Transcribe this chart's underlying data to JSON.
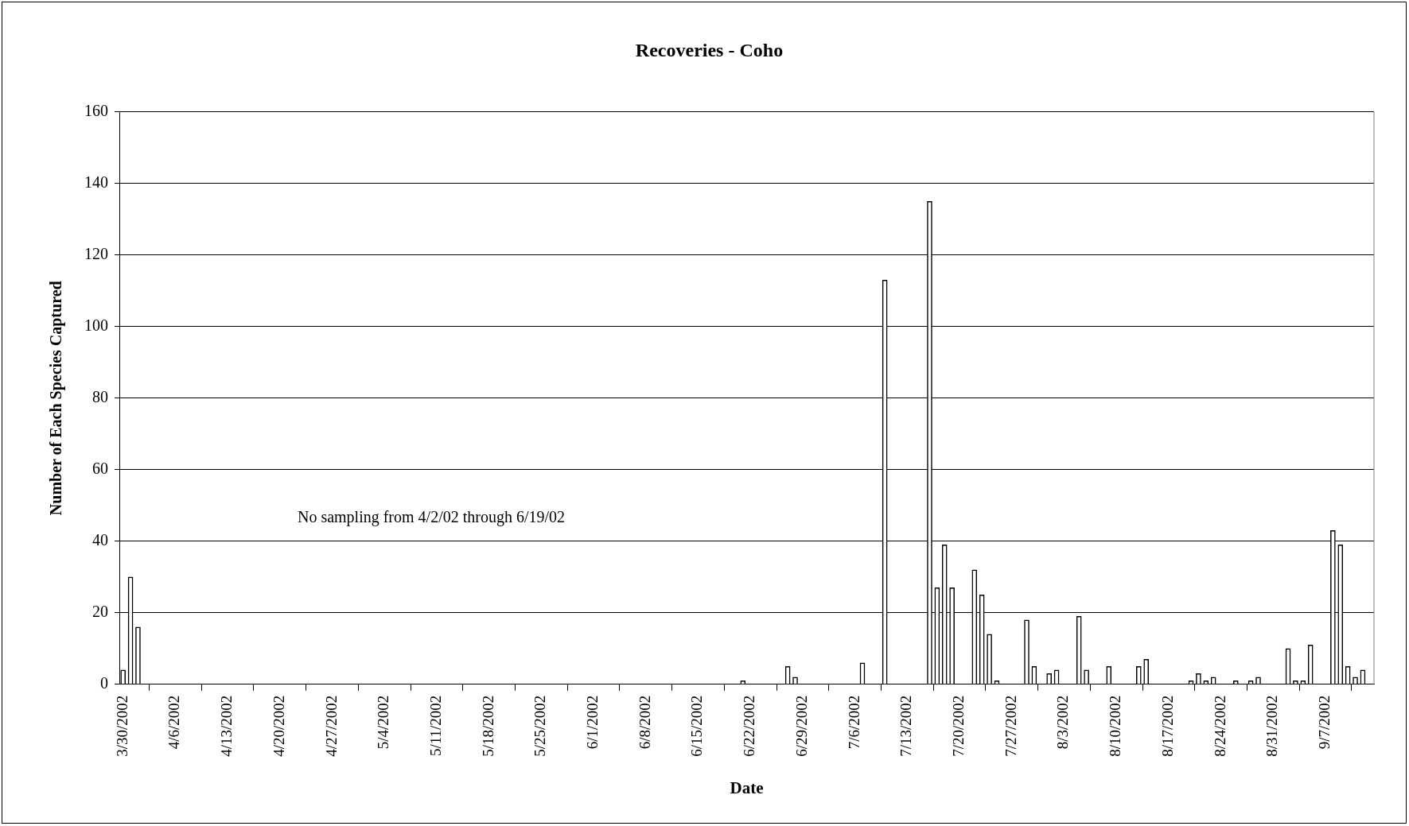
{
  "chart_data": {
    "type": "bar",
    "title": "Recoveries - Coho",
    "xlabel": "Date",
    "ylabel": "Number of Each Species Captured",
    "x": [
      "2002-03-30",
      "2002-03-31",
      "2002-04-01",
      "2002-06-21",
      "2002-06-27",
      "2002-06-28",
      "2002-07-07",
      "2002-07-10",
      "2002-07-16",
      "2002-07-17",
      "2002-07-18",
      "2002-07-19",
      "2002-07-22",
      "2002-07-23",
      "2002-07-24",
      "2002-07-25",
      "2002-07-29",
      "2002-07-30",
      "2002-08-01",
      "2002-08-02",
      "2002-08-05",
      "2002-08-06",
      "2002-08-09",
      "2002-08-13",
      "2002-08-14",
      "2002-08-20",
      "2002-08-21",
      "2002-08-22",
      "2002-08-23",
      "2002-08-26",
      "2002-08-28",
      "2002-08-29",
      "2002-09-02",
      "2002-09-03",
      "2002-09-04",
      "2002-09-05",
      "2002-09-08",
      "2002-09-09",
      "2002-09-10",
      "2002-09-11",
      "2002-09-12"
    ],
    "values": [
      4,
      30,
      16,
      1,
      5,
      2,
      6,
      113,
      135,
      27,
      39,
      27,
      32,
      25,
      14,
      1,
      18,
      5,
      3,
      4,
      19,
      4,
      5,
      5,
      7,
      1,
      3,
      1,
      2,
      1,
      1,
      2,
      10,
      1,
      1,
      11,
      43,
      39,
      5,
      2,
      4
    ],
    "color": "#ffffff",
    "xlim": [
      "2002-03-29T12:00",
      "2002-09-13T12:00"
    ],
    "xticks": [
      {
        "value": "2002-03-30",
        "label": "3/30/2002"
      },
      {
        "value": "2002-04-06",
        "label": "4/6/2002"
      },
      {
        "value": "2002-04-13",
        "label": "4/13/2002"
      },
      {
        "value": "2002-04-20",
        "label": "4/20/2002"
      },
      {
        "value": "2002-04-27",
        "label": "4/27/2002"
      },
      {
        "value": "2002-05-04",
        "label": "5/4/2002"
      },
      {
        "value": "2002-05-11",
        "label": "5/11/2002"
      },
      {
        "value": "2002-05-18",
        "label": "5/18/2002"
      },
      {
        "value": "2002-05-25",
        "label": "5/25/2002"
      },
      {
        "value": "2002-06-01",
        "label": "6/1/2002"
      },
      {
        "value": "2002-06-08",
        "label": "6/8/2002"
      },
      {
        "value": "2002-06-15",
        "label": "6/15/2002"
      },
      {
        "value": "2002-06-22",
        "label": "6/22/2002"
      },
      {
        "value": "2002-06-29",
        "label": "6/29/2002"
      },
      {
        "value": "2002-07-06",
        "label": "7/6/2002"
      },
      {
        "value": "2002-07-13",
        "label": "7/13/2002"
      },
      {
        "value": "2002-07-20",
        "label": "7/20/2002"
      },
      {
        "value": "2002-07-27",
        "label": "7/27/2002"
      },
      {
        "value": "2002-08-03",
        "label": "8/3/2002"
      },
      {
        "value": "2002-08-10",
        "label": "8/10/2002"
      },
      {
        "value": "2002-08-17",
        "label": "8/17/2002"
      },
      {
        "value": "2002-08-24",
        "label": "8/24/2002"
      },
      {
        "value": "2002-08-31",
        "label": "8/31/2002"
      },
      {
        "value": "2002-09-07",
        "label": "9/7/2002"
      }
    ],
    "ylim": [
      0,
      160
    ],
    "yticks": [
      0,
      20,
      40,
      60,
      80,
      100,
      120,
      140,
      160
    ],
    "grid": "y",
    "legend": false,
    "annotations": [
      "No sampling from 4/2/02 through 6/19/02"
    ]
  }
}
